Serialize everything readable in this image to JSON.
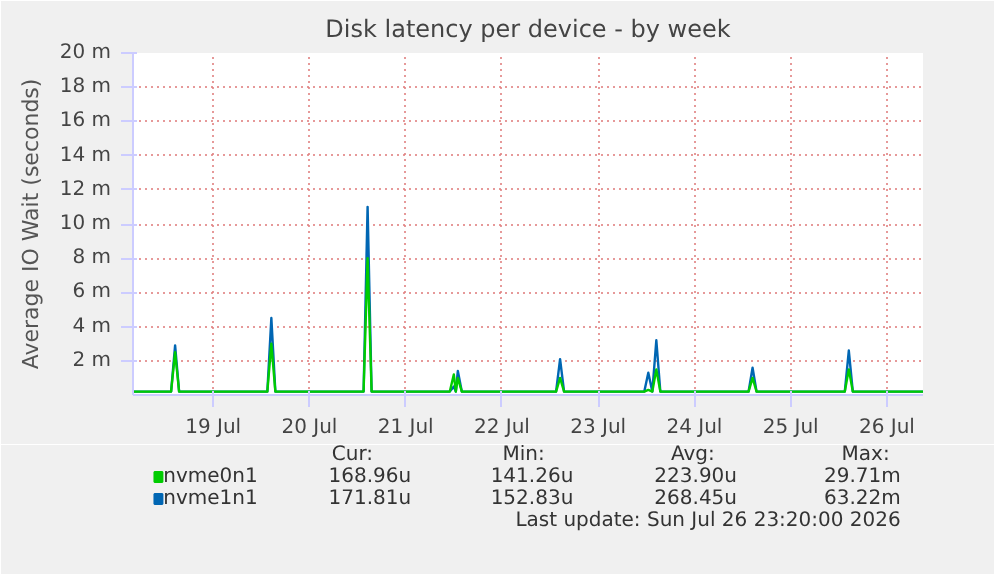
{
  "chart_data": {
    "type": "line",
    "title": "Disk latency per device - by week",
    "ylabel": "Average IO Wait (seconds)",
    "x": [
      "2026-07-18T16:00",
      "2026-07-19T01:30",
      "2026-07-19T02:30",
      "2026-07-19T03:30",
      "2026-07-20T01:30",
      "2026-07-20T02:30",
      "2026-07-20T03:30",
      "2026-07-21T01:30",
      "2026-07-21T02:30",
      "2026-07-21T03:30",
      "2026-07-21T23:00",
      "2026-07-22T00:00",
      "2026-07-22T00:30",
      "2026-07-22T01:00",
      "2026-07-22T02:00",
      "2026-07-23T01:30",
      "2026-07-23T02:30",
      "2026-07-23T03:30",
      "2026-07-23T23:30",
      "2026-07-24T00:30",
      "2026-07-24T01:30",
      "2026-07-24T02:30",
      "2026-07-24T03:30",
      "2026-07-25T01:30",
      "2026-07-25T02:30",
      "2026-07-25T03:30",
      "2026-07-26T01:30",
      "2026-07-26T02:30",
      "2026-07-26T03:30",
      "2026-07-26T21:00"
    ],
    "series": [
      {
        "name": "nvme0n1",
        "color": "#00cc00",
        "values": [
          0.2,
          0.2,
          2.5,
          0.2,
          0.2,
          3,
          0.2,
          0.2,
          8,
          0.2,
          0.2,
          1.2,
          0.2,
          1,
          0.2,
          0.2,
          1,
          0.2,
          0.2,
          0.3,
          0.2,
          1.5,
          0.2,
          0.2,
          1,
          0.2,
          0.2,
          1.5,
          0.2,
          0.2
        ]
      },
      {
        "name": "nvme1n1",
        "color": "#0066b3",
        "values": [
          0.2,
          0.2,
          2.9,
          0.2,
          0.2,
          4.5,
          0.2,
          0.2,
          11,
          0.2,
          0.2,
          0.5,
          0.2,
          1.4,
          0.2,
          0.2,
          2.1,
          0.2,
          0.2,
          1.3,
          0.2,
          3.2,
          0.2,
          0.2,
          1.6,
          0.2,
          0.2,
          2.6,
          0.2,
          0.2
        ]
      }
    ],
    "xlim": [
      "2026-07-18T16:00",
      "2026-07-26T21:00"
    ],
    "xticks": [
      {
        "value": "2026-07-19T12:00",
        "label": "19 Jul"
      },
      {
        "value": "2026-07-20T12:00",
        "label": "20 Jul"
      },
      {
        "value": "2026-07-21T12:00",
        "label": "21 Jul"
      },
      {
        "value": "2026-07-22T12:00",
        "label": "22 Jul"
      },
      {
        "value": "2026-07-23T12:00",
        "label": "23 Jul"
      },
      {
        "value": "2026-07-24T12:00",
        "label": "24 Jul"
      },
      {
        "value": "2026-07-25T12:00",
        "label": "25 Jul"
      },
      {
        "value": "2026-07-26T12:00",
        "label": "26 Jul"
      }
    ],
    "ylim": [
      0,
      20
    ],
    "yticks": [
      {
        "value": 2,
        "label": "2 m"
      },
      {
        "value": 4,
        "label": "4 m"
      },
      {
        "value": 6,
        "label": "6 m"
      },
      {
        "value": 8,
        "label": "8 m"
      },
      {
        "value": 10,
        "label": "10 m"
      },
      {
        "value": 12,
        "label": "12 m"
      },
      {
        "value": 14,
        "label": "14 m"
      },
      {
        "value": 16,
        "label": "16 m"
      },
      {
        "value": 18,
        "label": "18 m"
      },
      {
        "value": 20,
        "label": "20 m"
      }
    ],
    "grid": true,
    "legend": "bottom",
    "marker": "none",
    "line_style": "solid",
    "annotations": [
      "Cur:",
      "Min:",
      "Avg:",
      "Max:",
      "168.96u",
      "141.26u",
      "223.90u",
      "29.71m",
      "171.81u",
      "152.83u",
      "268.45u",
      "63.22m",
      "Last update: Sun Jul 26 23:20:00 2026"
    ]
  }
}
